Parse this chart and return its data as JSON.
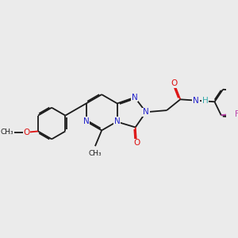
{
  "background_color": "#ebebeb",
  "bond_color": "#1a1a1a",
  "bond_width": 1.3,
  "N_color": "#2222cc",
  "O_color": "#dd1111",
  "F_color": "#bb44aa",
  "H_color": "#33aaaa",
  "text_fontsize": 7.5,
  "figsize": [
    3.0,
    3.0
  ],
  "dpi": 100,
  "xlim": [
    0,
    10
  ],
  "ylim": [
    0,
    10
  ]
}
